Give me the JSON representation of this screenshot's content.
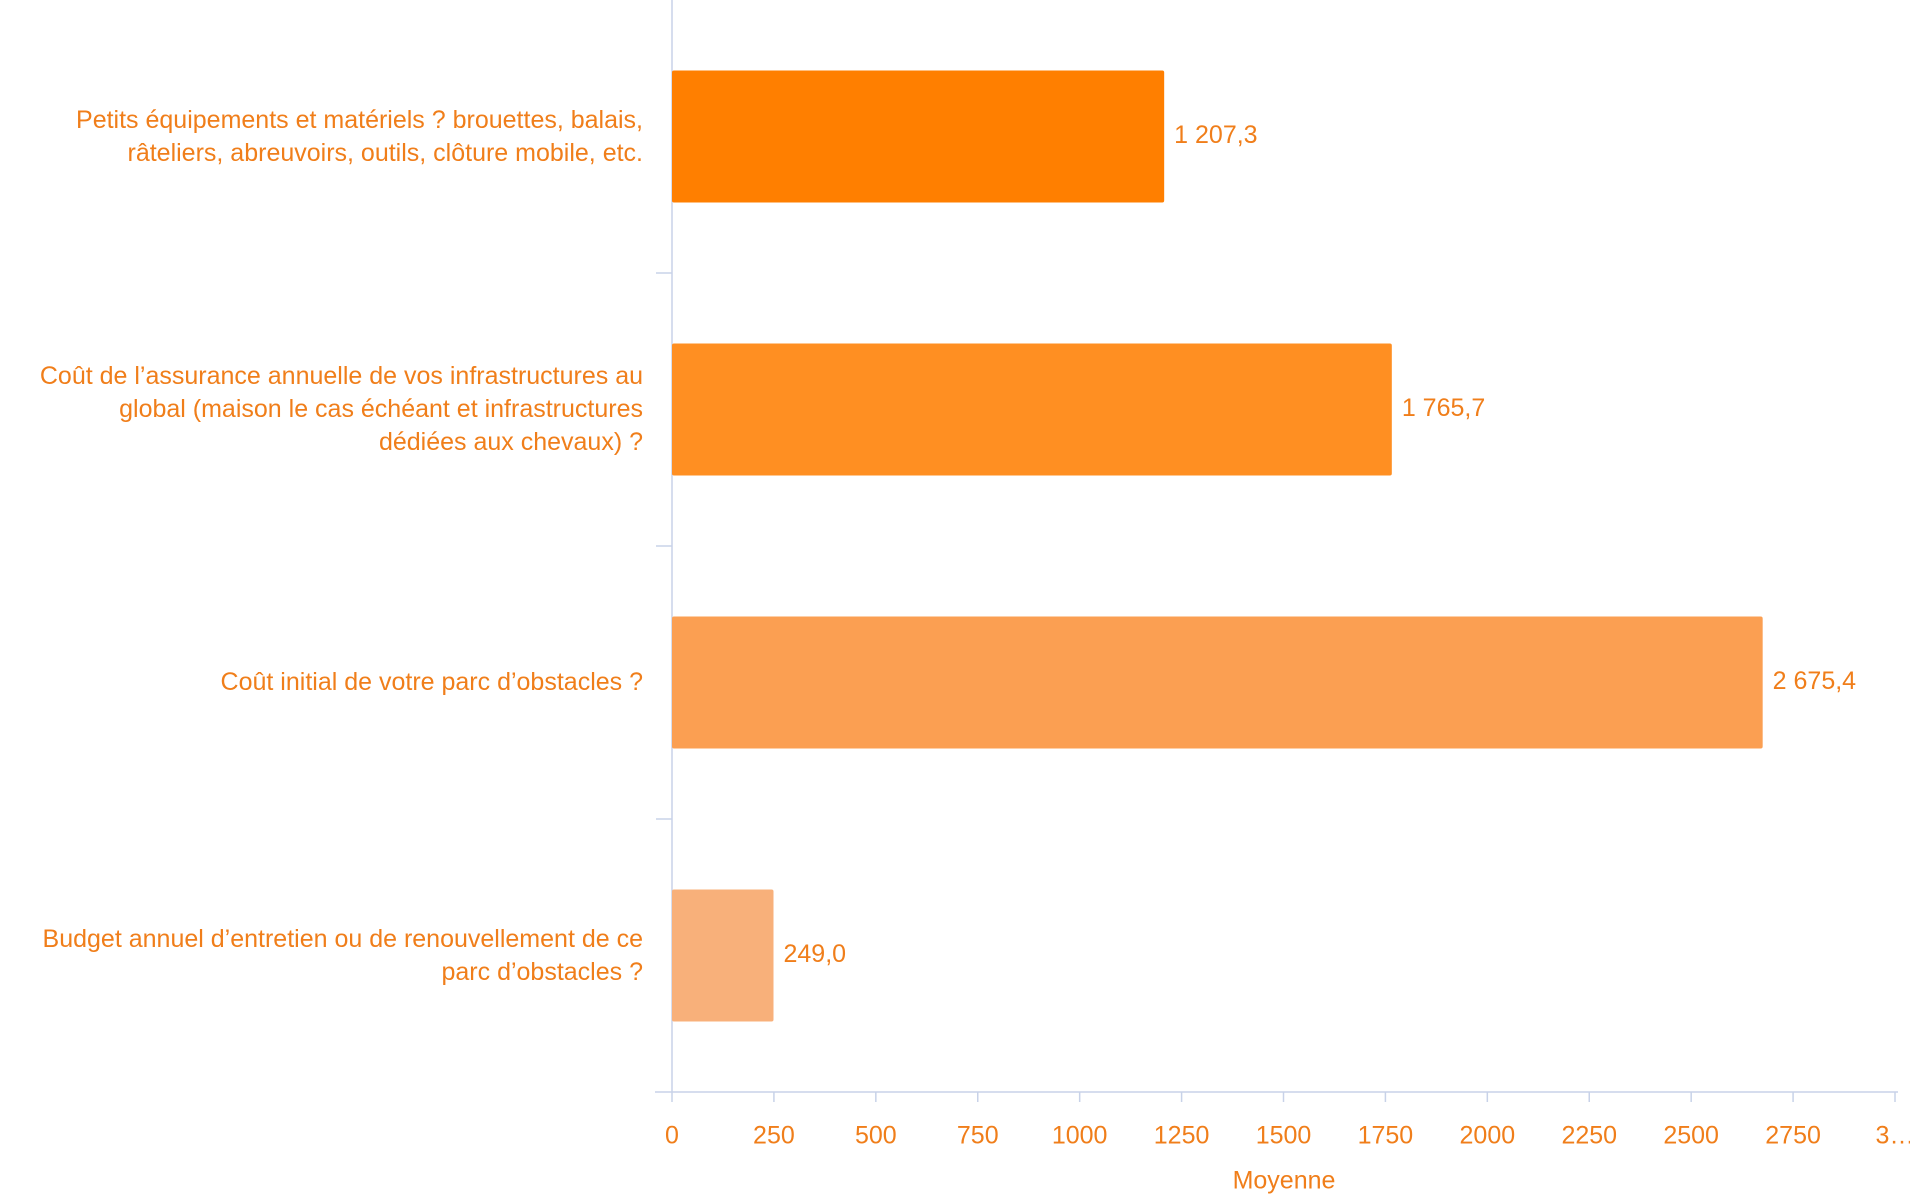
{
  "chart_data": {
    "type": "hbar",
    "categories": [
      "Petits équipements et matériels ? brouettes, balais, râteliers, abreuvoirs, outils, clôture mobile, etc.",
      "Coût de l’assurance annuelle de vos infrastructures au global (maison le cas échéant et infrastructures dédiées aux chevaux) ?",
      "Coût initial de votre parc d’obstacles ?",
      "Budget annuel d’entretien ou de renouvellement de ce parc d’obstacles ?"
    ],
    "values": [
      1207.3,
      1765.7,
      2675.4,
      249.0
    ],
    "value_labels": [
      "1 207,3",
      "1 765,7",
      "2 675,4",
      "249,0"
    ],
    "colors": [
      "#ff7f00",
      "#ff8f22",
      "#fb9f52",
      "#f8b07a"
    ],
    "xlabel": "Moyenne",
    "xlim": [
      0,
      3000
    ],
    "xticks": [
      0,
      250,
      500,
      750,
      1000,
      1250,
      1500,
      1750,
      2000,
      2250,
      2500,
      2750,
      {
        "value": 3000,
        "label": "3…"
      }
    ]
  }
}
